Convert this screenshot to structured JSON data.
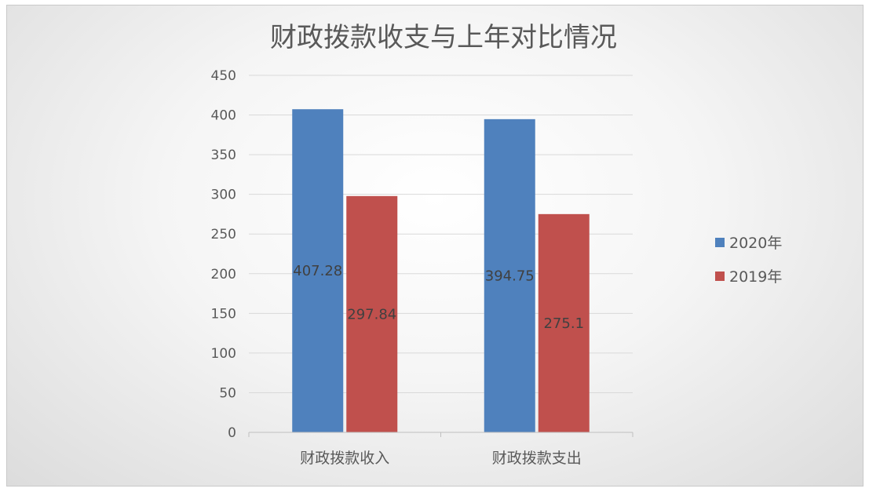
{
  "chart_data": {
    "type": "bar",
    "title": "财政拨款收支与上年对比情况",
    "categories": [
      "财政拨款收入",
      "财政拨款支出"
    ],
    "series": [
      {
        "name": "2020年",
        "values": [
          407.28,
          394.75
        ],
        "color": "#4F81BD"
      },
      {
        "name": "2019年",
        "values": [
          297.84,
          275.1
        ],
        "color": "#C0504D"
      }
    ],
    "ylim": [
      0,
      450
    ],
    "yticks": [
      0,
      50,
      100,
      150,
      200,
      250,
      300,
      350,
      400,
      450
    ],
    "grid": true,
    "legend_position": "right",
    "data_labels": true
  }
}
